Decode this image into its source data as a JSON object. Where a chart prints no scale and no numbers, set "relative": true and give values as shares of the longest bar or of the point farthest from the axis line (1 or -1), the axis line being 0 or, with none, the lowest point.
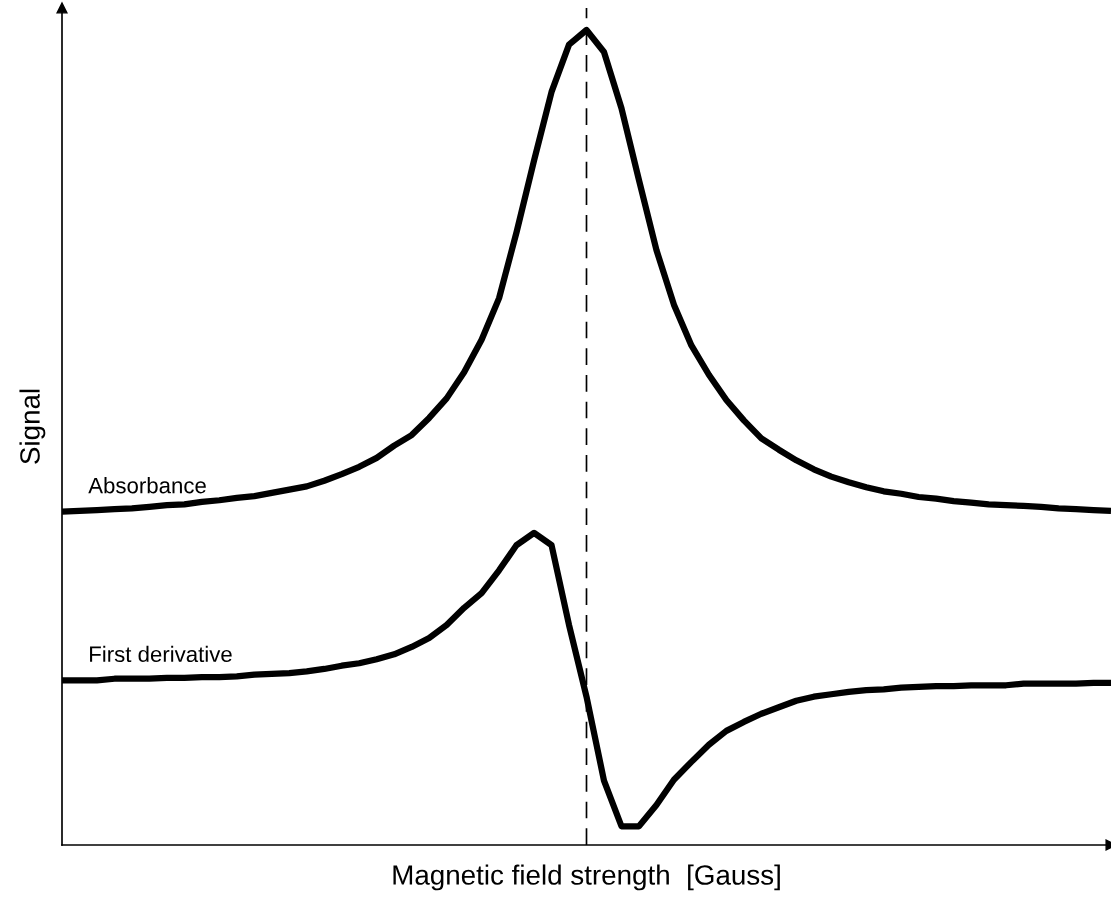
{
  "chart_data": {
    "type": "line",
    "relative": true,
    "xlabel": "Magnetic field strength  [Gauss]",
    "ylabel": "Signal",
    "categories": [
      null,
      null,
      null,
      null,
      null,
      null,
      null,
      null,
      null,
      null,
      null,
      null,
      null,
      null,
      null,
      null,
      null,
      null,
      null,
      null,
      null,
      null,
      null,
      null,
      null,
      null,
      null,
      null,
      null,
      null,
      null,
      null,
      null,
      null,
      null,
      null,
      null,
      null,
      null,
      null,
      null,
      null,
      null,
      null,
      null,
      null,
      null,
      null,
      null,
      null,
      null,
      null,
      null,
      null,
      null,
      null,
      null,
      null,
      null,
      null,
      null
    ],
    "series": [
      {
        "name": "Absorbance",
        "color": "#000000",
        "values": [
          0.409,
          0.41,
          0.411,
          0.412,
          0.413,
          0.415,
          0.417,
          0.418,
          0.421,
          0.423,
          0.426,
          0.428,
          0.432,
          0.436,
          0.44,
          0.447,
          0.455,
          0.464,
          0.475,
          0.49,
          0.503,
          0.524,
          0.548,
          0.58,
          0.62,
          0.671,
          0.752,
          0.84,
          0.924,
          0.982,
          1,
          0.973,
          0.904,
          0.816,
          0.73,
          0.663,
          0.613,
          0.577,
          0.546,
          0.521,
          0.499,
          0.485,
          0.472,
          0.461,
          0.452,
          0.445,
          0.439,
          0.434,
          0.431,
          0.427,
          0.425,
          0.422,
          0.42,
          0.418,
          0.417,
          0.416,
          0.415,
          0.413,
          0.412,
          0.411,
          0.41
        ]
      },
      {
        "name": "First derivative",
        "color": "#000000",
        "values": [
          0.202,
          0.202,
          0.202,
          0.204,
          0.204,
          0.204,
          0.205,
          0.205,
          0.206,
          0.206,
          0.207,
          0.209,
          0.21,
          0.211,
          0.213,
          0.216,
          0.22,
          0.223,
          0.228,
          0.234,
          0.243,
          0.254,
          0.27,
          0.291,
          0.309,
          0.337,
          0.368,
          0.383,
          0.368,
          0.27,
          0.182,
          0.079,
          0.023,
          0.023,
          0.049,
          0.08,
          0.102,
          0.123,
          0.14,
          0.151,
          0.161,
          0.169,
          0.177,
          0.182,
          0.185,
          0.188,
          0.19,
          0.191,
          0.193,
          0.194,
          0.195,
          0.195,
          0.196,
          0.196,
          0.196,
          0.198,
          0.198,
          0.198,
          0.198,
          0.199,
          0.199
        ]
      }
    ],
    "legend": false,
    "marker": "none",
    "line_style": "solid"
  }
}
